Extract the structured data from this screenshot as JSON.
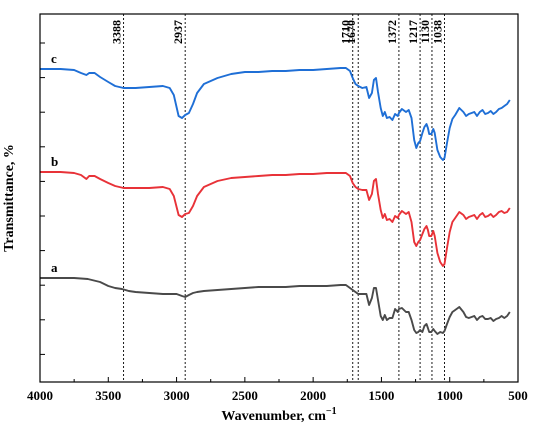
{
  "chart_data": {
    "type": "line",
    "title": "",
    "xlabel": "Wavenumber, cm",
    "xlabel_superscript": "−1",
    "ylabel": "Transmittance, %",
    "xlim": [
      4000,
      500
    ],
    "x_reversed": true,
    "xticks": [
      "4000",
      "3500",
      "3000",
      "2500",
      "2000",
      "1500",
      "1000",
      "500"
    ],
    "y_tick_labels": false,
    "annotations": [
      {
        "label": "3388",
        "x": 3388
      },
      {
        "label": "2937",
        "x": 2937
      },
      {
        "label": "1710",
        "x": 1710
      },
      {
        "label": "1670",
        "x": 1670
      },
      {
        "label": "1372",
        "x": 1372
      },
      {
        "label": "1217",
        "x": 1217
      },
      {
        "label": "1130",
        "x": 1130
      },
      {
        "label": "1038",
        "x": 1038
      }
    ],
    "series": [
      {
        "name": "c",
        "color": "#1f6fd6",
        "points": [
          [
            4000,
            69
          ],
          [
            3850,
            69
          ],
          [
            3750,
            70
          ],
          [
            3700,
            73
          ],
          [
            3660,
            75
          ],
          [
            3640,
            73
          ],
          [
            3600,
            73
          ],
          [
            3560,
            77
          ],
          [
            3500,
            82
          ],
          [
            3450,
            86
          ],
          [
            3388,
            88
          ],
          [
            3300,
            88
          ],
          [
            3200,
            87
          ],
          [
            3100,
            86
          ],
          [
            3050,
            88
          ],
          [
            3020,
            95
          ],
          [
            2985,
            116
          ],
          [
            2960,
            118
          ],
          [
            2937,
            115
          ],
          [
            2910,
            113
          ],
          [
            2880,
            104
          ],
          [
            2850,
            93
          ],
          [
            2800,
            84
          ],
          [
            2700,
            78
          ],
          [
            2600,
            74
          ],
          [
            2500,
            72
          ],
          [
            2400,
            72
          ],
          [
            2300,
            71
          ],
          [
            2200,
            71
          ],
          [
            2100,
            70
          ],
          [
            2000,
            70
          ],
          [
            1900,
            69
          ],
          [
            1800,
            68
          ],
          [
            1760,
            68
          ],
          [
            1730,
            71
          ],
          [
            1710,
            78
          ],
          [
            1690,
            84
          ],
          [
            1670,
            86
          ],
          [
            1640,
            88
          ],
          [
            1610,
            87
          ],
          [
            1590,
            98
          ],
          [
            1570,
            93
          ],
          [
            1555,
            80
          ],
          [
            1540,
            78
          ],
          [
            1525,
            92
          ],
          [
            1505,
            108
          ],
          [
            1490,
            116
          ],
          [
            1475,
            112
          ],
          [
            1460,
            118
          ],
          [
            1440,
            117
          ],
          [
            1420,
            120
          ],
          [
            1400,
            114
          ],
          [
            1380,
            116
          ],
          [
            1372,
            113
          ],
          [
            1350,
            109
          ],
          [
            1320,
            112
          ],
          [
            1300,
            110
          ],
          [
            1280,
            118
          ],
          [
            1260,
            140
          ],
          [
            1245,
            148
          ],
          [
            1230,
            143
          ],
          [
            1217,
            141
          ],
          [
            1200,
            133
          ],
          [
            1185,
            127
          ],
          [
            1170,
            124
          ],
          [
            1160,
            128
          ],
          [
            1150,
            134
          ],
          [
            1135,
            134
          ],
          [
            1120,
            129
          ],
          [
            1110,
            133
          ],
          [
            1090,
            150
          ],
          [
            1070,
            157
          ],
          [
            1050,
            160
          ],
          [
            1038,
            158
          ],
          [
            1020,
            143
          ],
          [
            1000,
            128
          ],
          [
            980,
            119
          ],
          [
            960,
            115
          ],
          [
            930,
            108
          ],
          [
            900,
            112
          ],
          [
            880,
            116
          ],
          [
            860,
            114
          ],
          [
            840,
            113
          ],
          [
            820,
            112
          ],
          [
            800,
            116
          ],
          [
            780,
            112
          ],
          [
            760,
            110
          ],
          [
            740,
            114
          ],
          [
            720,
            113
          ],
          [
            700,
            111
          ],
          [
            680,
            114
          ],
          [
            660,
            112
          ],
          [
            640,
            109
          ],
          [
            620,
            108
          ],
          [
            600,
            106
          ],
          [
            580,
            104
          ],
          [
            560,
            100
          ]
        ]
      },
      {
        "name": "b",
        "color": "#e83238",
        "points": [
          [
            4000,
            172
          ],
          [
            3850,
            172
          ],
          [
            3750,
            173
          ],
          [
            3700,
            175
          ],
          [
            3660,
            179
          ],
          [
            3640,
            176
          ],
          [
            3600,
            176
          ],
          [
            3560,
            179
          ],
          [
            3500,
            183
          ],
          [
            3450,
            186
          ],
          [
            3388,
            188
          ],
          [
            3300,
            188
          ],
          [
            3200,
            188
          ],
          [
            3100,
            187
          ],
          [
            3050,
            189
          ],
          [
            3020,
            196
          ],
          [
            2985,
            215
          ],
          [
            2960,
            217
          ],
          [
            2937,
            214
          ],
          [
            2910,
            213
          ],
          [
            2880,
            206
          ],
          [
            2850,
            196
          ],
          [
            2800,
            187
          ],
          [
            2700,
            181
          ],
          [
            2600,
            178
          ],
          [
            2500,
            177
          ],
          [
            2400,
            176
          ],
          [
            2300,
            175
          ],
          [
            2200,
            175
          ],
          [
            2100,
            174
          ],
          [
            2000,
            174
          ],
          [
            1900,
            173
          ],
          [
            1800,
            173
          ],
          [
            1760,
            173
          ],
          [
            1730,
            176
          ],
          [
            1710,
            183
          ],
          [
            1690,
            187
          ],
          [
            1670,
            189
          ],
          [
            1640,
            190
          ],
          [
            1610,
            190
          ],
          [
            1590,
            200
          ],
          [
            1570,
            194
          ],
          [
            1555,
            181
          ],
          [
            1540,
            179
          ],
          [
            1525,
            194
          ],
          [
            1505,
            210
          ],
          [
            1490,
            218
          ],
          [
            1475,
            214
          ],
          [
            1460,
            220
          ],
          [
            1440,
            219
          ],
          [
            1420,
            222
          ],
          [
            1400,
            216
          ],
          [
            1380,
            218
          ],
          [
            1372,
            215
          ],
          [
            1350,
            211
          ],
          [
            1320,
            214
          ],
          [
            1300,
            212
          ],
          [
            1280,
            222
          ],
          [
            1260,
            242
          ],
          [
            1245,
            246
          ],
          [
            1230,
            242
          ],
          [
            1217,
            240
          ],
          [
            1200,
            234
          ],
          [
            1185,
            229
          ],
          [
            1170,
            226
          ],
          [
            1160,
            230
          ],
          [
            1150,
            236
          ],
          [
            1135,
            236
          ],
          [
            1120,
            231
          ],
          [
            1110,
            236
          ],
          [
            1090,
            253
          ],
          [
            1070,
            262
          ],
          [
            1050,
            266
          ],
          [
            1038,
            264
          ],
          [
            1020,
            248
          ],
          [
            1000,
            232
          ],
          [
            980,
            222
          ],
          [
            960,
            218
          ],
          [
            930,
            212
          ],
          [
            900,
            215
          ],
          [
            880,
            219
          ],
          [
            860,
            217
          ],
          [
            840,
            216
          ],
          [
            820,
            215
          ],
          [
            800,
            219
          ],
          [
            780,
            215
          ],
          [
            760,
            213
          ],
          [
            740,
            217
          ],
          [
            720,
            216
          ],
          [
            700,
            214
          ],
          [
            680,
            217
          ],
          [
            660,
            215
          ],
          [
            640,
            212
          ],
          [
            620,
            211
          ],
          [
            600,
            213
          ],
          [
            580,
            212
          ],
          [
            560,
            208
          ]
        ]
      },
      {
        "name": "a",
        "color": "#4a4a4a",
        "points": [
          [
            4000,
            278
          ],
          [
            3850,
            278
          ],
          [
            3750,
            278
          ],
          [
            3650,
            279
          ],
          [
            3560,
            282
          ],
          [
            3500,
            286
          ],
          [
            3450,
            288
          ],
          [
            3400,
            289
          ],
          [
            3350,
            291
          ],
          [
            3300,
            292
          ],
          [
            3200,
            293
          ],
          [
            3100,
            294
          ],
          [
            3050,
            294
          ],
          [
            3000,
            294
          ],
          [
            2960,
            296
          ],
          [
            2937,
            297
          ],
          [
            2910,
            295
          ],
          [
            2880,
            293
          ],
          [
            2850,
            292
          ],
          [
            2800,
            291
          ],
          [
            2700,
            290
          ],
          [
            2600,
            289
          ],
          [
            2500,
            288
          ],
          [
            2400,
            287
          ],
          [
            2300,
            287
          ],
          [
            2200,
            287
          ],
          [
            2100,
            286
          ],
          [
            2000,
            286
          ],
          [
            1900,
            286
          ],
          [
            1800,
            285
          ],
          [
            1760,
            285
          ],
          [
            1730,
            288
          ],
          [
            1710,
            290
          ],
          [
            1690,
            292
          ],
          [
            1670,
            294
          ],
          [
            1640,
            294
          ],
          [
            1610,
            294
          ],
          [
            1590,
            305
          ],
          [
            1570,
            298
          ],
          [
            1555,
            288
          ],
          [
            1540,
            288
          ],
          [
            1525,
            300
          ],
          [
            1505,
            316
          ],
          [
            1490,
            320
          ],
          [
            1475,
            315
          ],
          [
            1460,
            320
          ],
          [
            1440,
            318
          ],
          [
            1420,
            318
          ],
          [
            1400,
            309
          ],
          [
            1380,
            312
          ],
          [
            1372,
            309
          ],
          [
            1350,
            308
          ],
          [
            1320,
            312
          ],
          [
            1300,
            312
          ],
          [
            1280,
            320
          ],
          [
            1260,
            330
          ],
          [
            1245,
            333
          ],
          [
            1230,
            332
          ],
          [
            1217,
            330
          ],
          [
            1200,
            332
          ],
          [
            1185,
            326
          ],
          [
            1170,
            324
          ],
          [
            1160,
            328
          ],
          [
            1150,
            332
          ],
          [
            1135,
            332
          ],
          [
            1120,
            329
          ],
          [
            1110,
            331
          ],
          [
            1090,
            334
          ],
          [
            1070,
            332
          ],
          [
            1050,
            333
          ],
          [
            1038,
            331
          ],
          [
            1020,
            324
          ],
          [
            1000,
            317
          ],
          [
            980,
            312
          ],
          [
            960,
            310
          ],
          [
            930,
            307
          ],
          [
            900,
            312
          ],
          [
            880,
            317
          ],
          [
            860,
            318
          ],
          [
            840,
            317
          ],
          [
            820,
            316
          ],
          [
            800,
            320
          ],
          [
            780,
            317
          ],
          [
            760,
            316
          ],
          [
            740,
            319
          ],
          [
            720,
            319
          ],
          [
            700,
            318
          ],
          [
            680,
            321
          ],
          [
            660,
            319
          ],
          [
            640,
            318
          ],
          [
            620,
            316
          ],
          [
            600,
            318
          ],
          [
            580,
            316
          ],
          [
            560,
            312
          ]
        ]
      }
    ]
  }
}
